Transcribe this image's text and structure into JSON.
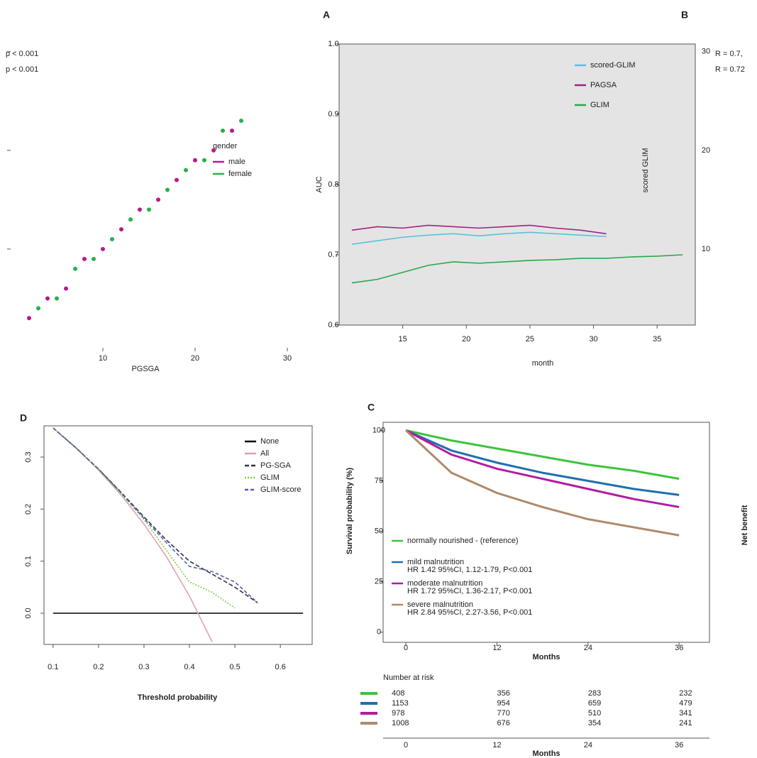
{
  "chart_data": [
    {
      "type": "line",
      "title": "A",
      "x_label": "month",
      "y_label": "AUC",
      "x": [
        11,
        13,
        15,
        17,
        19,
        21,
        23,
        25,
        27,
        29,
        31,
        33,
        35,
        37
      ],
      "series": [
        {
          "name": "scored-GLIM",
          "color": "#5bc0de",
          "values": [
            0.715,
            0.72,
            0.725,
            0.728,
            0.73,
            0.727,
            0.73,
            0.732,
            0.73,
            0.728,
            0.726,
            null,
            null,
            null
          ]
        },
        {
          "name": "PAGSA",
          "color": "#a0237f",
          "values": [
            0.735,
            0.74,
            0.738,
            0.742,
            0.74,
            0.738,
            0.74,
            0.742,
            0.738,
            0.735,
            0.73,
            null,
            null,
            null
          ]
        },
        {
          "name": "GLIM",
          "color": "#2aa84a",
          "values": [
            0.66,
            0.665,
            0.675,
            0.685,
            0.69,
            0.688,
            0.69,
            0.692,
            0.693,
            0.695,
            0.695,
            0.697,
            0.698,
            0.7
          ]
        }
      ],
      "xlim": [
        10,
        38
      ],
      "xticks": [
        15,
        20,
        25,
        30,
        35
      ],
      "ylim": [
        0.6,
        1.0
      ],
      "yticks": [
        0.6,
        0.7,
        0.8,
        0.9,
        {
          "value": 1,
          "label": "1.0"
        }
      ]
    },
    {
      "type": "scatter",
      "title": "B",
      "x_label": "PGSGA",
      "y_label": "scored GLIM",
      "legend_title": "gender",
      "annotations": [
        {
          "text": "p < 0.001",
          "color": "#b5198f"
        },
        {
          "text": "p < 0.001",
          "color": "#27b04b"
        },
        {
          "text": "R = 0.7,",
          "color": "#b5198f"
        },
        {
          "text": "R = 0.72",
          "color": "#27b04b"
        }
      ],
      "series": [
        {
          "name": "male",
          "color": "#b5198f",
          "x": [
            2,
            4,
            6,
            8,
            10,
            12,
            14,
            16,
            18,
            20,
            22,
            24
          ],
          "y": [
            3,
            5,
            6,
            9,
            10,
            12,
            14,
            15,
            17,
            19,
            20,
            22
          ]
        },
        {
          "name": "female",
          "color": "#27b04b",
          "x": [
            3,
            5,
            7,
            9,
            11,
            13,
            15,
            17,
            19,
            21,
            23,
            25
          ],
          "y": [
            4,
            5,
            8,
            9,
            11,
            13,
            14,
            16,
            18,
            19,
            22,
            23
          ]
        }
      ],
      "xlim": [
        0,
        30
      ],
      "xticks": [
        10,
        20,
        30
      ],
      "ylim": [
        0,
        32
      ],
      "yticks": [
        10,
        20,
        30
      ]
    },
    {
      "type": "line",
      "title": "D",
      "x_label": "Threshold probability",
      "y_label": "Net benefit",
      "x": [
        0.1,
        0.15,
        0.2,
        0.25,
        0.3,
        0.35,
        0.4,
        0.45,
        0.5,
        0.55,
        0.6,
        0.65
      ],
      "series": [
        {
          "name": "None",
          "color": "#000000",
          "dash": "none",
          "values": [
            0,
            0,
            0,
            0,
            0,
            0,
            0,
            0,
            0,
            0,
            0,
            0
          ]
        },
        {
          "name": "All",
          "color": "#e0a0b0",
          "dash": "none",
          "values": [
            0.356,
            0.318,
            0.275,
            0.227,
            0.171,
            0.108,
            0.033,
            -0.055,
            null,
            null,
            null,
            null
          ]
        },
        {
          "name": "PG-SGA",
          "color": "#333344",
          "dash": "6,3",
          "values": [
            0.356,
            0.318,
            0.277,
            0.232,
            0.185,
            0.14,
            0.1,
            0.075,
            0.05,
            0.02,
            null,
            null
          ]
        },
        {
          "name": "GLIM",
          "color": "#7fd040",
          "dash": "2,2",
          "values": [
            0.356,
            0.318,
            0.276,
            0.229,
            0.18,
            0.12,
            0.06,
            0.04,
            0.01,
            null,
            null,
            null
          ]
        },
        {
          "name": "GLIM-score",
          "color": "#5060b0",
          "dash": "5,3",
          "values": [
            0.356,
            0.318,
            0.277,
            0.231,
            0.182,
            0.135,
            0.09,
            0.08,
            0.06,
            0.02,
            null,
            null
          ]
        }
      ],
      "xlim": [
        0.08,
        0.67
      ],
      "xticks": [
        0.1,
        0.2,
        0.3,
        0.4,
        0.5,
        0.6
      ],
      "ylim": [
        -0.06,
        0.36
      ],
      "yticks": [
        {
          "value": 0,
          "label": "0.0"
        },
        0.1,
        0.2,
        0.3
      ]
    },
    {
      "type": "line",
      "title": "C",
      "x_label": "Months",
      "y_label": "Survival probability (%)",
      "x": [
        0,
        6,
        12,
        18,
        24,
        30,
        36
      ],
      "series": [
        {
          "name": "normally nourished - (reference)",
          "color": "#3cc43c",
          "values": [
            100,
            95,
            91,
            87,
            83,
            80,
            76
          ]
        },
        {
          "name": "mild malnutrition",
          "hr": "HR 1.42 95%CI, 1.12-1.79, P<0.001",
          "color": "#1f6fb0",
          "values": [
            100,
            90,
            84,
            79,
            75,
            71,
            68
          ]
        },
        {
          "name": "moderate malnutrition",
          "hr": "HR 1.72 95%CI, 1.36-2.17, P<0.001",
          "color": "#b31ca0",
          "values": [
            100,
            88,
            81,
            76,
            71,
            66,
            62
          ]
        },
        {
          "name": "severe malnutrition",
          "hr": "HR 2.84 95%CI, 2.27-3.56, P<0.001",
          "color": "#b08a6a",
          "values": [
            100,
            79,
            69,
            62,
            56,
            52,
            48
          ]
        }
      ],
      "xlim": [
        -3,
        40
      ],
      "xticks": [
        0,
        12,
        24,
        36
      ],
      "ylim": [
        -5,
        104
      ],
      "yticks": [
        0,
        25,
        50,
        75,
        100
      ],
      "risk_table": {
        "title": "Number at risk",
        "xlabel": "Months",
        "rows": [
          [
            408,
            356,
            283,
            232
          ],
          [
            1153,
            954,
            659,
            479
          ],
          [
            978,
            770,
            510,
            341
          ],
          [
            1008,
            676,
            354,
            241
          ]
        ]
      }
    }
  ]
}
